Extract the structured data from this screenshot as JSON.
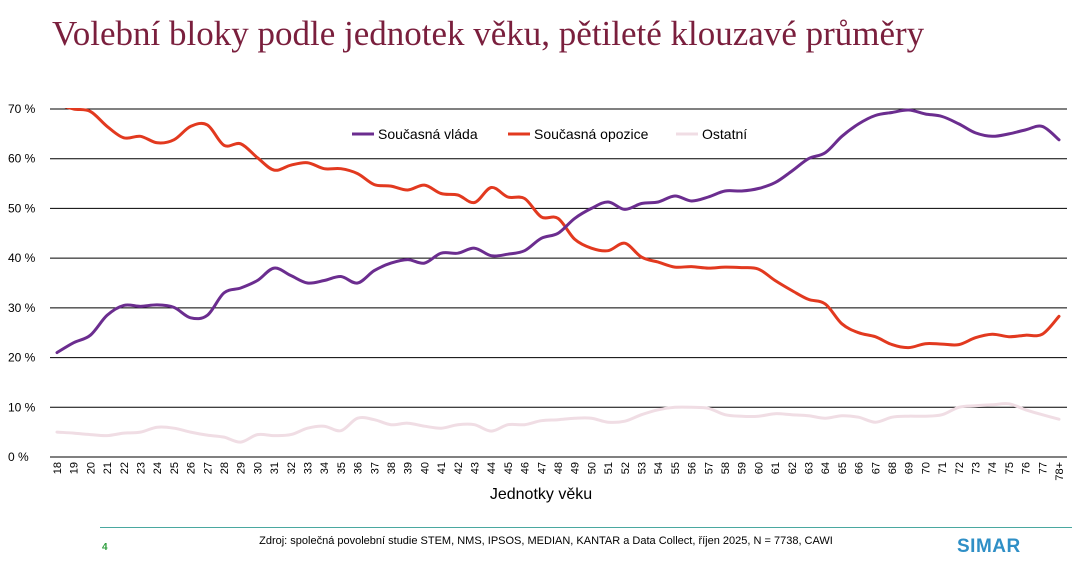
{
  "title": "Volební bloky podle jednotek věku, pětileté klouzavé průměry",
  "footer": {
    "page_number": "4",
    "source": "Zdroj: společná povolební studie STEM, NMS, IPSOS, MEDIAN, KANTAR a Data Collect, říjen 2025, N = 7738, CAWI",
    "logo": "SIMAR"
  },
  "chart_data": {
    "type": "line",
    "title": "Volební bloky podle jednotek věku, pětileté klouzavé průměry",
    "xlabel": "Jednotky věku",
    "ylabel": "",
    "ylim": [
      0,
      70
    ],
    "yticks": [
      "0 %",
      "10 %",
      "20 %",
      "30 %",
      "40 %",
      "50 %",
      "60 %",
      "70 %"
    ],
    "grid": true,
    "legend_position": "top-center",
    "categories": [
      "18",
      "19",
      "20",
      "21",
      "22",
      "23",
      "24",
      "25",
      "26",
      "27",
      "28",
      "29",
      "30",
      "31",
      "32",
      "33",
      "34",
      "35",
      "36",
      "37",
      "38",
      "39",
      "40",
      "41",
      "42",
      "43",
      "44",
      "45",
      "46",
      "47",
      "48",
      "49",
      "50",
      "51",
      "52",
      "53",
      "54",
      "55",
      "56",
      "57",
      "58",
      "59",
      "60",
      "61",
      "62",
      "63",
      "64",
      "65",
      "66",
      "67",
      "68",
      "69",
      "70",
      "71",
      "72",
      "73",
      "74",
      "75",
      "76",
      "77",
      "78+"
    ],
    "series": [
      {
        "name": "Současná vláda",
        "color": "#6b2d8f",
        "values": [
          21,
          23,
          24.5,
          28.5,
          30.5,
          30.3,
          30.6,
          30.1,
          28,
          28.5,
          33,
          34,
          35.5,
          38,
          36.5,
          35,
          35.5,
          36.3,
          35,
          37.5,
          39,
          39.7,
          39,
          41,
          41,
          42,
          40.5,
          40.8,
          41.5,
          44,
          45,
          48,
          50,
          51.3,
          49.8,
          51,
          51.3,
          52.5,
          51.5,
          52.3,
          53.5,
          53.5,
          54,
          55.2,
          57.5,
          60,
          61.2,
          64.5,
          67,
          68.7,
          69.3,
          69.8,
          69,
          68.5,
          67,
          65.2,
          64.5,
          65,
          65.8,
          66.5,
          63.8
        ]
      },
      {
        "name": "Současná opozice",
        "color": "#e2391f",
        "values": [
          71,
          70,
          69.5,
          66.5,
          64.2,
          64.5,
          63.2,
          63.8,
          66.5,
          66.8,
          62.7,
          63,
          60.2,
          57.7,
          58.7,
          59.2,
          58,
          58,
          57,
          54.8,
          54.5,
          53.7,
          54.7,
          53,
          52.7,
          51.2,
          54.2,
          52.3,
          52,
          48.3,
          48,
          43.8,
          42,
          41.5,
          43,
          40.2,
          39.2,
          38.2,
          38.3,
          38,
          38.2,
          38.1,
          37.8,
          35.5,
          33.5,
          31.7,
          30.8,
          26.8,
          25,
          24.2,
          22.6,
          22,
          22.8,
          22.7,
          22.6,
          24,
          24.7,
          24.2,
          24.5,
          24.7,
          28.3
        ]
      },
      {
        "name": "Ostatní",
        "color": "#f0dde4",
        "values": [
          5,
          4.8,
          4.5,
          4.3,
          4.8,
          5,
          6,
          5.8,
          5,
          4.4,
          4,
          3,
          4.5,
          4.3,
          4.5,
          5.8,
          6.2,
          5.3,
          7.8,
          7.5,
          6.5,
          6.8,
          6.2,
          5.8,
          6.5,
          6.5,
          5.2,
          6.5,
          6.5,
          7.3,
          7.5,
          7.8,
          7.8,
          7,
          7.2,
          8.5,
          9.5,
          10,
          10,
          9.8,
          8.5,
          8.2,
          8.2,
          8.7,
          8.5,
          8.3,
          7.8,
          8.3,
          8,
          7,
          8,
          8.2,
          8.2,
          8.5,
          10,
          10.3,
          10.5,
          10.7,
          9.5,
          8.5,
          7.6
        ]
      }
    ]
  }
}
